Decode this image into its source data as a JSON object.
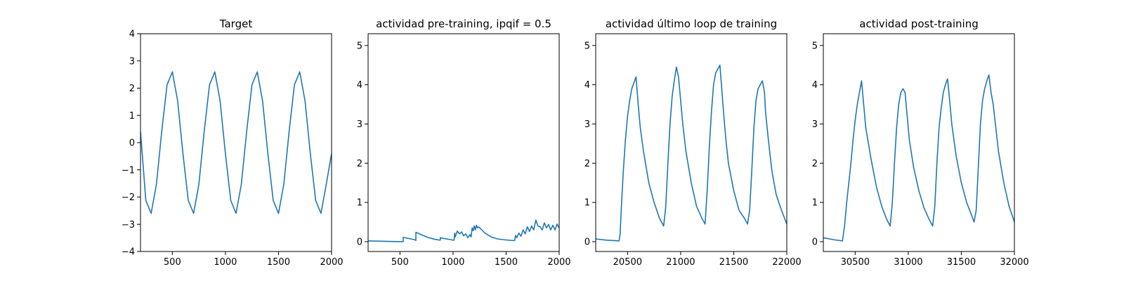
{
  "figure": {
    "background": "#ffffff",
    "line_color": "#1f77b4",
    "axes_color": "#000000"
  },
  "chart_data": [
    {
      "type": "line",
      "title": "Target",
      "xlabel": "",
      "ylabel": "",
      "xlim": [
        200,
        2000
      ],
      "ylim": [
        -4,
        4
      ],
      "xticks": [
        500,
        1000,
        1500,
        2000
      ],
      "yticks": [
        -4,
        -3,
        -2,
        -1,
        0,
        1,
        2,
        3,
        4
      ],
      "ytick_labels": [
        "−4",
        "−3",
        "−2",
        "−1",
        "0",
        "1",
        "2",
        "3",
        "4"
      ],
      "grid": false,
      "series": [
        {
          "x": [
            200,
            250,
            300,
            350,
            400,
            450,
            500,
            550,
            600,
            650,
            700,
            750,
            800,
            850,
            900,
            950,
            1000,
            1050,
            1100,
            1150,
            1200,
            1250,
            1300,
            1350,
            1400,
            1450,
            1500,
            1550,
            1600,
            1650,
            1700,
            1750,
            1800,
            1850,
            1900,
            1950,
            2000
          ],
          "y": [
            0.41,
            -2.12,
            -2.6,
            -1.53,
            0.41,
            2.12,
            2.6,
            1.53,
            -0.41,
            -2.12,
            -2.6,
            -1.53,
            0.41,
            2.12,
            2.6,
            1.53,
            -0.41,
            -2.12,
            -2.6,
            -1.53,
            0.41,
            2.12,
            2.6,
            1.53,
            -0.41,
            -2.12,
            -2.6,
            -1.53,
            0.41,
            2.12,
            2.6,
            1.53,
            -0.41,
            -2.12,
            -2.6,
            -1.53,
            -0.4
          ]
        }
      ]
    },
    {
      "type": "line",
      "title": "actividad pre-training, ipqif = 0.5",
      "xlabel": "",
      "ylabel": "",
      "xlim": [
        200,
        2000
      ],
      "ylim": [
        -0.25,
        5.3
      ],
      "xticks": [
        500,
        1000,
        1500,
        2000
      ],
      "yticks": [
        0,
        1,
        2,
        3,
        4,
        5
      ],
      "grid": false,
      "series": [
        {
          "x": [
            200,
            520,
            530,
            530,
            640,
            650,
            650,
            700,
            760,
            830,
            875,
            880,
            880,
            980,
            1000,
            1010,
            1015,
            1020,
            1040,
            1060,
            1080,
            1100,
            1120,
            1140,
            1160,
            1170,
            1180,
            1190,
            1200,
            1210,
            1220,
            1230,
            1240,
            1260,
            1300,
            1360,
            1420,
            1480,
            1560,
            1580,
            1590,
            1600,
            1620,
            1640,
            1660,
            1680,
            1700,
            1720,
            1740,
            1760,
            1780,
            1800,
            1820,
            1840,
            1860,
            1880,
            1900,
            1920,
            1940,
            1960,
            1980,
            2000
          ],
          "y": [
            0.02,
            0.0,
            0.0,
            0.11,
            0.05,
            0.03,
            0.24,
            0.18,
            0.11,
            0.06,
            0.04,
            0.04,
            0.1,
            0.05,
            0.04,
            0.04,
            0.22,
            0.12,
            0.27,
            0.2,
            0.25,
            0.15,
            0.2,
            0.1,
            0.18,
            0.12,
            0.35,
            0.28,
            0.4,
            0.3,
            0.42,
            0.35,
            0.38,
            0.33,
            0.22,
            0.12,
            0.07,
            0.05,
            0.03,
            0.03,
            0.16,
            0.1,
            0.22,
            0.14,
            0.3,
            0.2,
            0.38,
            0.26,
            0.4,
            0.3,
            0.55,
            0.4,
            0.38,
            0.3,
            0.48,
            0.35,
            0.44,
            0.3,
            0.42,
            0.3,
            0.45,
            0.35
          ]
        }
      ]
    },
    {
      "type": "line",
      "title": "actividad último loop de training",
      "xlabel": "",
      "ylabel": "",
      "xlim": [
        20200,
        22000
      ],
      "ylim": [
        -0.25,
        5.3
      ],
      "xticks": [
        20500,
        21000,
        21500,
        22000
      ],
      "yticks": [
        0,
        1,
        2,
        3,
        4,
        5
      ],
      "grid": false,
      "series": [
        {
          "x": [
            20200,
            20300,
            20420,
            20430,
            20440,
            20460,
            20480,
            20500,
            20520,
            20540,
            20560,
            20580,
            20600,
            20620,
            20650,
            20700,
            20750,
            20800,
            20840,
            20860,
            20880,
            20900,
            20920,
            20940,
            20960,
            20980,
            21000,
            21020,
            21050,
            21100,
            21150,
            21200,
            21230,
            21250,
            21270,
            21290,
            21310,
            21330,
            21350,
            21370,
            21390,
            21410,
            21430,
            21450,
            21500,
            21550,
            21600,
            21630,
            21650,
            21670,
            21690,
            21710,
            21730,
            21750,
            21770,
            21790,
            21800,
            21830,
            21860,
            21900,
            21950,
            22000
          ],
          "y": [
            0.07,
            0.04,
            0.02,
            0.2,
            0.8,
            1.8,
            2.6,
            3.2,
            3.6,
            3.9,
            4.05,
            4.2,
            3.5,
            2.9,
            2.3,
            1.5,
            1.0,
            0.6,
            0.4,
            0.9,
            2.0,
            3.0,
            3.7,
            4.1,
            4.45,
            4.2,
            3.6,
            3.0,
            2.3,
            1.5,
            0.9,
            0.6,
            0.45,
            1.3,
            2.4,
            3.3,
            4.0,
            4.3,
            4.4,
            4.5,
            3.8,
            3.1,
            2.5,
            2.0,
            1.3,
            0.8,
            0.6,
            0.45,
            0.8,
            1.8,
            2.9,
            3.6,
            3.9,
            4.0,
            4.1,
            3.8,
            3.3,
            2.5,
            1.8,
            1.2,
            0.8,
            0.45
          ]
        }
      ]
    },
    {
      "type": "line",
      "title": "actividad post-training",
      "xlabel": "",
      "ylabel": "",
      "xlim": [
        30200,
        32000
      ],
      "ylim": [
        -0.25,
        5.3
      ],
      "xticks": [
        30500,
        31000,
        31500,
        32000
      ],
      "yticks": [
        0,
        1,
        2,
        3,
        4,
        5
      ],
      "grid": false,
      "series": [
        {
          "x": [
            30200,
            30300,
            30380,
            30400,
            30420,
            30440,
            30460,
            30480,
            30500,
            30520,
            30540,
            30560,
            30580,
            30600,
            30650,
            30700,
            30750,
            30800,
            30830,
            30850,
            30870,
            30890,
            30910,
            30930,
            30950,
            30970,
            30990,
            31010,
            31050,
            31100,
            31150,
            31200,
            31230,
            31250,
            31270,
            31290,
            31310,
            31330,
            31350,
            31370,
            31390,
            31410,
            31450,
            31500,
            31550,
            31600,
            31620,
            31640,
            31660,
            31680,
            31700,
            31720,
            31740,
            31760,
            31780,
            31800,
            31850,
            31900,
            31950,
            32000
          ],
          "y": [
            0.1,
            0.05,
            0.02,
            0.4,
            1.0,
            1.5,
            2.0,
            2.6,
            3.1,
            3.5,
            3.8,
            4.1,
            3.5,
            2.9,
            2.1,
            1.4,
            0.9,
            0.55,
            0.4,
            1.0,
            2.0,
            2.9,
            3.5,
            3.8,
            3.9,
            3.8,
            3.2,
            2.6,
            1.9,
            1.3,
            0.85,
            0.55,
            0.4,
            0.9,
            2.0,
            2.9,
            3.4,
            3.8,
            4.0,
            4.15,
            3.6,
            3.0,
            2.2,
            1.5,
            1.0,
            0.65,
            0.5,
            0.8,
            1.9,
            3.0,
            3.6,
            3.9,
            4.1,
            4.25,
            3.8,
            3.5,
            2.3,
            1.5,
            0.9,
            0.5
          ]
        }
      ]
    }
  ]
}
